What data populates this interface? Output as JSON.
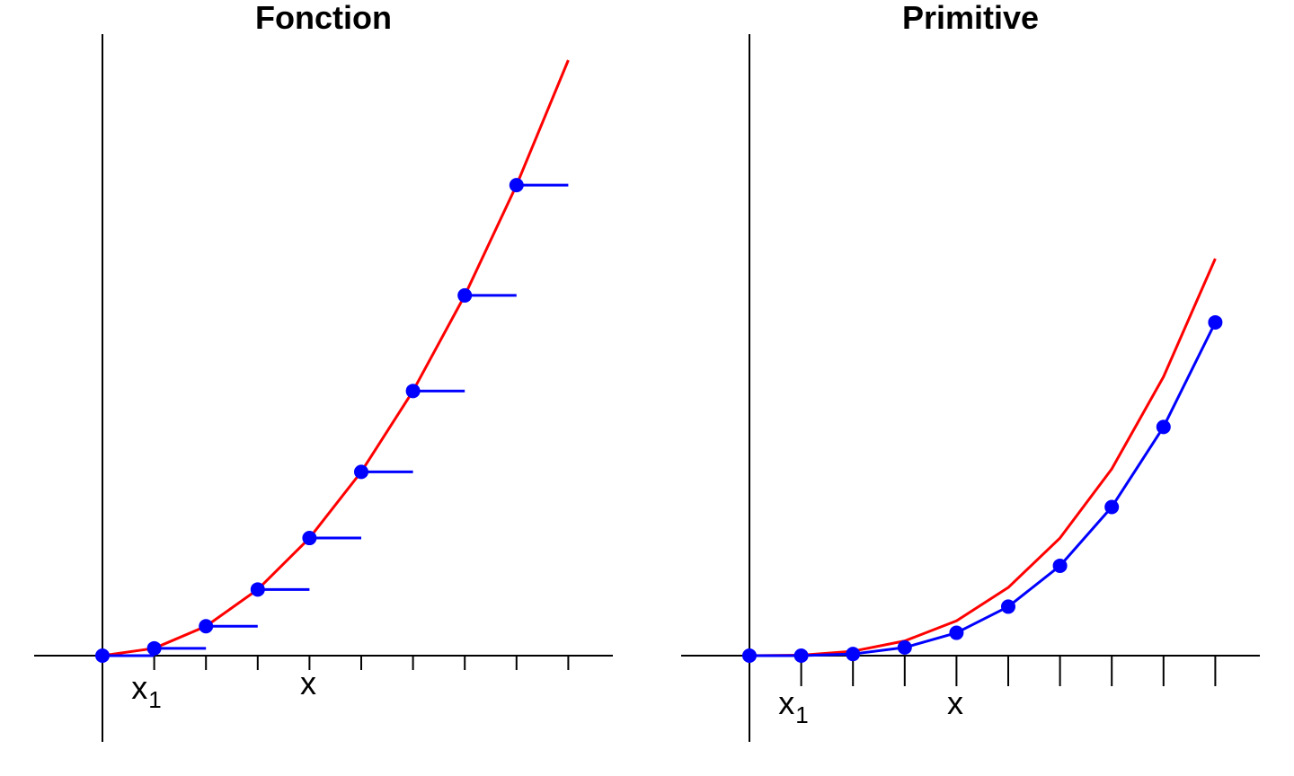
{
  "chart_data": [
    {
      "type": "line",
      "title": "Fonction",
      "xlabel": "",
      "ylabel": "",
      "grid": false,
      "x_tick_labels": [
        {
          "at": 1,
          "base": "x",
          "sub": "1"
        },
        {
          "at": 4,
          "base": "x",
          "sub": ""
        }
      ],
      "x_ticks": [
        0,
        1,
        2,
        3,
        4,
        5,
        6,
        7,
        8,
        9
      ],
      "xlim": [
        -1.3,
        9.8
      ],
      "ylim": [
        0,
        82
      ],
      "series": [
        {
          "style": "curve",
          "color": "#ff0000",
          "x": [
            0,
            1,
            2,
            3,
            4,
            5,
            6,
            7,
            8,
            9
          ],
          "y": [
            0,
            1,
            4,
            9,
            16,
            25,
            36,
            49,
            64,
            81
          ]
        },
        {
          "style": "step-points",
          "color": "#0000ff",
          "x": [
            0,
            1,
            2,
            3,
            4,
            5,
            6,
            7,
            8
          ],
          "y": [
            0,
            1,
            4,
            9,
            16,
            25,
            36,
            49,
            64
          ]
        }
      ]
    },
    {
      "type": "line",
      "title": "Primitive",
      "xlabel": "",
      "ylabel": "",
      "grid": false,
      "x_tick_labels": [
        {
          "at": 1,
          "base": "x",
          "sub": "1"
        },
        {
          "at": 4,
          "base": "x",
          "sub": ""
        }
      ],
      "x_ticks": [
        0,
        1,
        2,
        3,
        4,
        5,
        6,
        7,
        8,
        9
      ],
      "xlim": [
        -1.3,
        9.8
      ],
      "ylim": [
        0,
        300
      ],
      "series": [
        {
          "style": "curve",
          "color": "#ff0000",
          "x": [
            0,
            1,
            2,
            3,
            4,
            5,
            6,
            7,
            8,
            9
          ],
          "y": [
            0,
            0.3,
            2.7,
            9,
            21.3,
            41.7,
            72,
            114.3,
            170.7,
            243
          ]
        },
        {
          "style": "curve-points",
          "color": "#0000ff",
          "x": [
            0,
            1,
            2,
            3,
            4,
            5,
            6,
            7,
            8,
            9
          ],
          "y": [
            0,
            0,
            1,
            5,
            14,
            30,
            55,
            91,
            140,
            204
          ]
        }
      ]
    }
  ]
}
